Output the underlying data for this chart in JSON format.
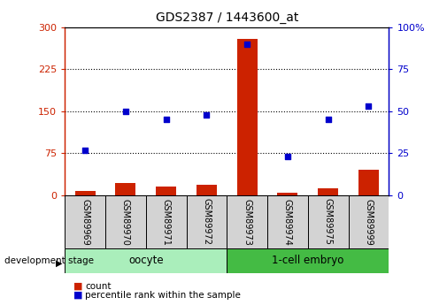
{
  "title": "GDS2387 / 1443600_at",
  "samples": [
    "GSM89969",
    "GSM89970",
    "GSM89971",
    "GSM89972",
    "GSM89973",
    "GSM89974",
    "GSM89975",
    "GSM89999"
  ],
  "count_values": [
    8,
    22,
    15,
    18,
    280,
    4,
    13,
    45
  ],
  "percentile_values": [
    27,
    50,
    45,
    48,
    90,
    23,
    45,
    53
  ],
  "oocyte_indices": [
    0,
    1,
    2,
    3
  ],
  "cell_indices": [
    4,
    5,
    6,
    7
  ],
  "oocyte_label": "oocyte",
  "cell_label": "1-cell embryo",
  "oocyte_color": "#AAEEBB",
  "cell_color": "#44BB44",
  "ylim_left": [
    0,
    300
  ],
  "ylim_right": [
    0,
    100
  ],
  "yticks_left": [
    0,
    75,
    150,
    225,
    300
  ],
  "yticks_right": [
    0,
    25,
    50,
    75,
    100
  ],
  "bar_color": "#CC2200",
  "dot_color": "#0000CC",
  "bg_color": "#FFFFFF",
  "stage_label": "development stage",
  "legend_count": "count",
  "legend_percentile": "percentile rank within the sample",
  "title_fontsize": 10,
  "tick_fontsize": 8,
  "label_fontsize": 8,
  "sample_fontsize": 7
}
